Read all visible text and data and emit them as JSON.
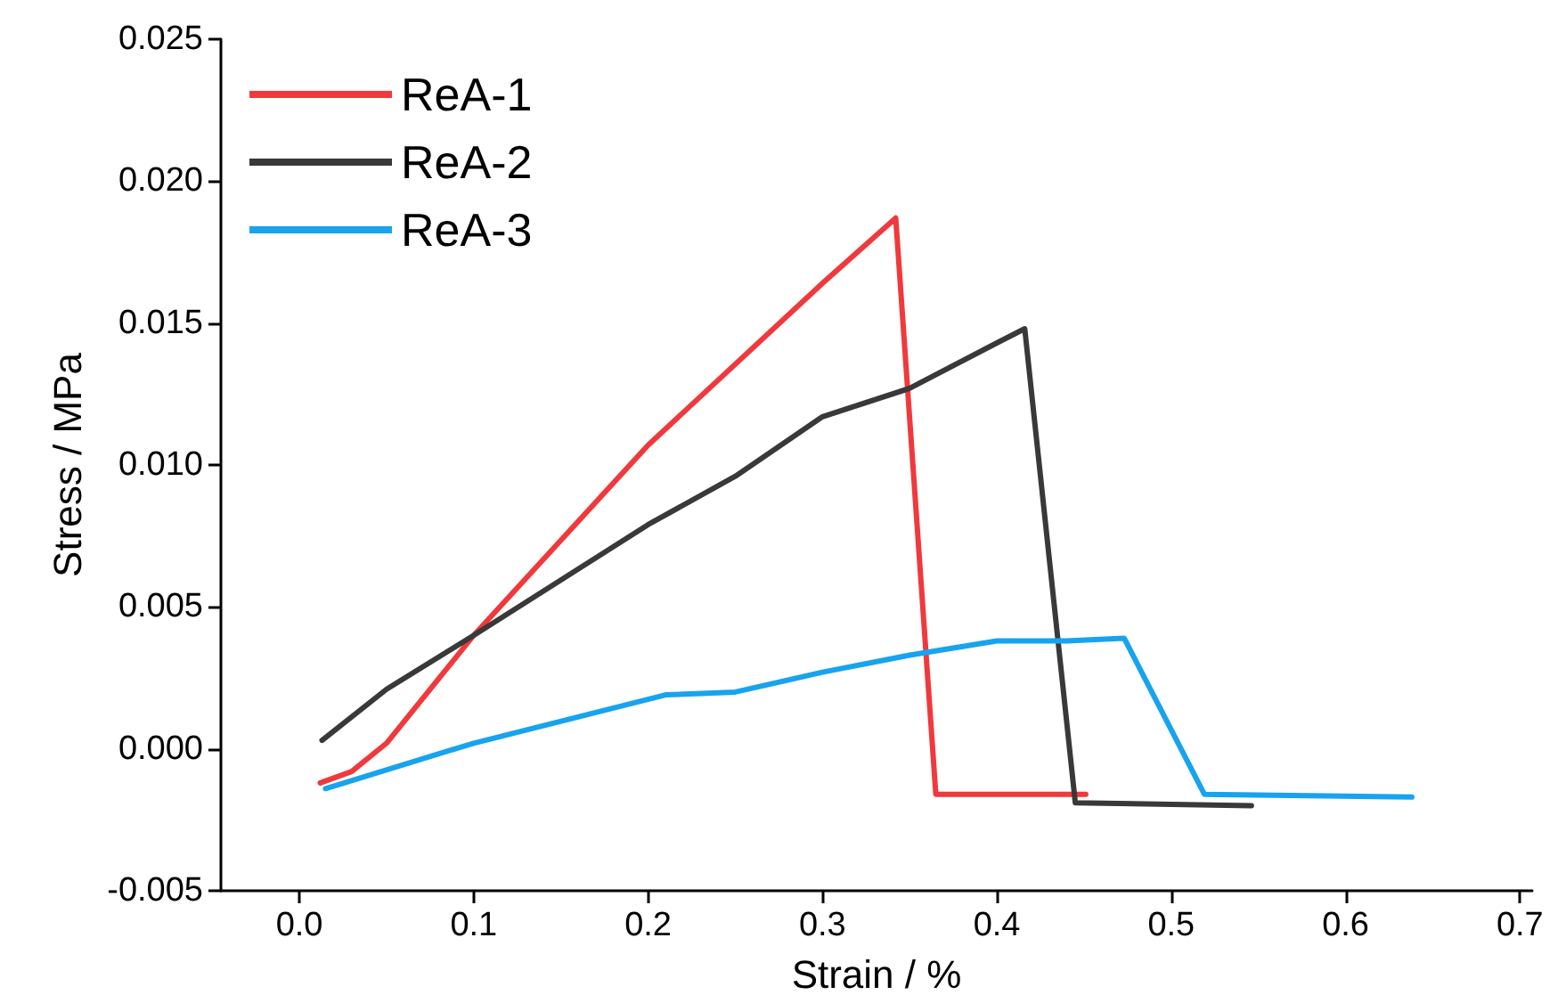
{
  "chart_data": {
    "type": "line",
    "xlabel": "Strain / %",
    "ylabel": "Stress / MPa",
    "xlim": [
      -0.045,
      0.707
    ],
    "ylim": [
      -0.005,
      0.025
    ],
    "xticks": [
      {
        "value": 0,
        "label": "0.0"
      },
      {
        "value": 0.1,
        "label": "0.1"
      },
      {
        "value": 0.2,
        "label": "0.2"
      },
      {
        "value": 0.3,
        "label": "0.3"
      },
      {
        "value": 0.4,
        "label": "0.4"
      },
      {
        "value": 0.5,
        "label": "0.5"
      },
      {
        "value": 0.6,
        "label": "0.6"
      },
      {
        "value": 0.7,
        "label": "0.7"
      }
    ],
    "yticks": [
      {
        "value": -0.005,
        "label": "-0.005"
      },
      {
        "value": 0,
        "label": "0.000"
      },
      {
        "value": 0.005,
        "label": "0.005"
      },
      {
        "value": 0.01,
        "label": "0.010"
      },
      {
        "value": 0.015,
        "label": "0.015"
      },
      {
        "value": 0.02,
        "label": "0.020"
      },
      {
        "value": 0.025,
        "label": "0.025"
      }
    ],
    "grid": false,
    "legend": "top left",
    "marker": "none",
    "line_style": "solid",
    "series": [
      {
        "name": "ReA-1",
        "color": "#f0393c",
        "x": [
          0.012,
          0.03,
          0.05,
          0.1,
          0.2,
          0.3,
          0.342,
          0.365,
          0.451
        ],
        "values": [
          -0.0012,
          -0.0008,
          0.0002,
          0.004,
          0.0107,
          0.0164,
          0.0187,
          -0.0016,
          -0.0016
        ]
      },
      {
        "name": "ReA-2",
        "color": "#393939",
        "x": [
          0.013,
          0.05,
          0.1,
          0.2,
          0.25,
          0.3,
          0.35,
          0.4,
          0.416,
          0.445,
          0.546
        ],
        "values": [
          0.0003,
          0.0021,
          0.004,
          0.0079,
          0.0096,
          0.0117,
          0.0127,
          0.0143,
          0.0148,
          -0.0019,
          -0.002
        ]
      },
      {
        "name": "ReA-3",
        "color": "#18a3ef",
        "x": [
          0.015,
          0.1,
          0.21,
          0.25,
          0.3,
          0.35,
          0.4,
          0.44,
          0.473,
          0.519,
          0.638
        ],
        "values": [
          -0.0014,
          0.0002,
          0.0019,
          0.002,
          0.0027,
          0.0033,
          0.0038,
          0.0038,
          0.0039,
          -0.0016,
          -0.0017
        ]
      }
    ]
  }
}
